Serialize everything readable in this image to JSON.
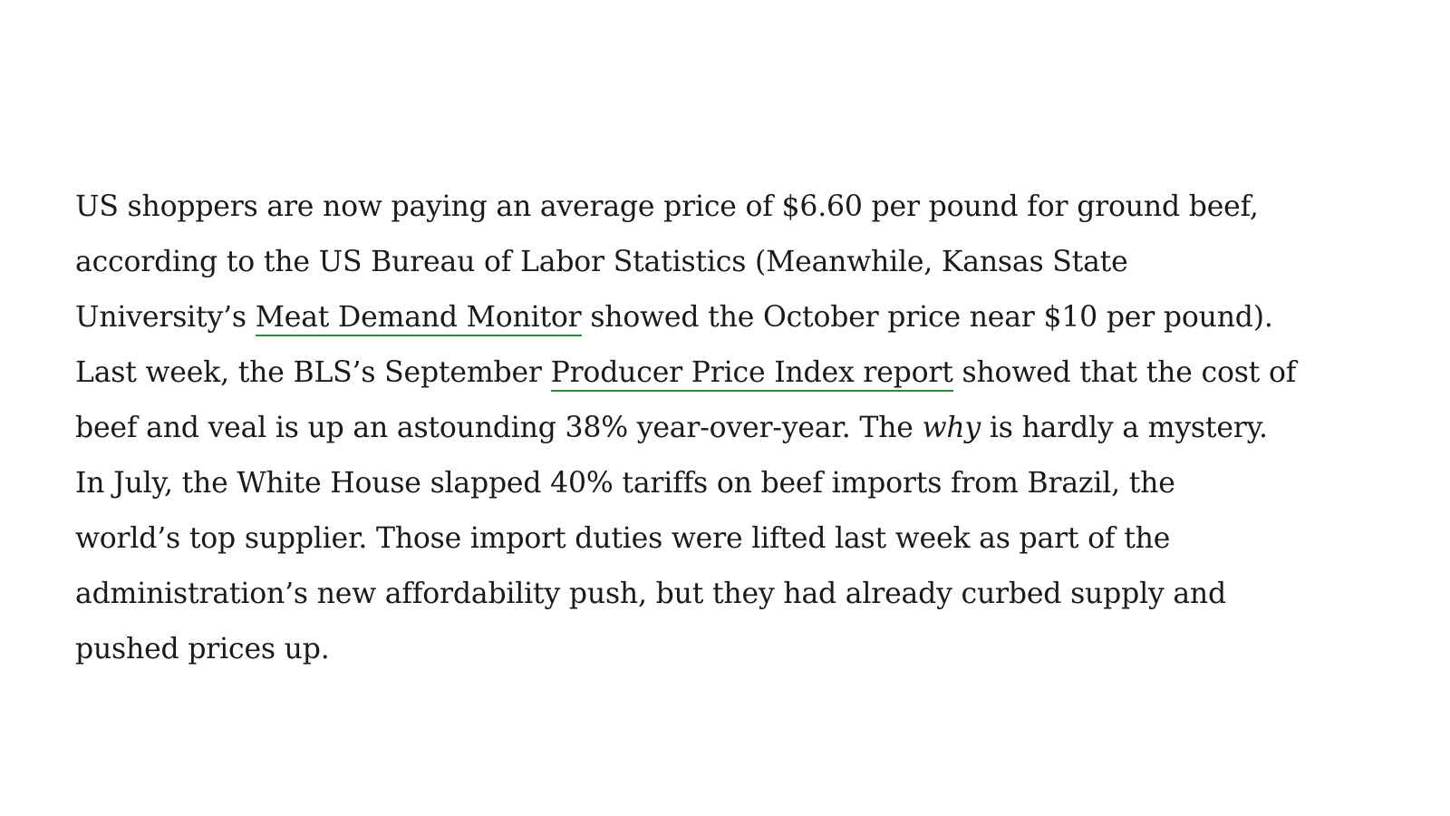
{
  "article": {
    "paragraph": {
      "line1": "US shoppers are now paying an average price of $6.60 per pound for ground beef,",
      "line2": "according to the US Bureau of Labor Statistics (Meanwhile, Kansas State",
      "line3_before": "University’s ",
      "line3_link": "Meat Demand Monitor",
      "line3_after": " showed the October price near $10 per pound).",
      "line4_before": "Last week, the BLS’s September ",
      "line4_link": "Producer Price Index report",
      "line4_after": " showed that the cost of",
      "line5_before": "beef and veal is up an astounding 38% year-over-year. The ",
      "line5_em": "why",
      "line5_after": " is hardly a mystery.",
      "line6": "In July, the White House slapped 40% tariffs on beef imports from Brazil, the",
      "line7": "world’s top supplier. Those import duties were lifted last week as part of the",
      "line8": "administration’s new affordability push, but they had already curbed supply and",
      "line9": "pushed prices up."
    },
    "link_underline_color": "#2e8b3d"
  }
}
